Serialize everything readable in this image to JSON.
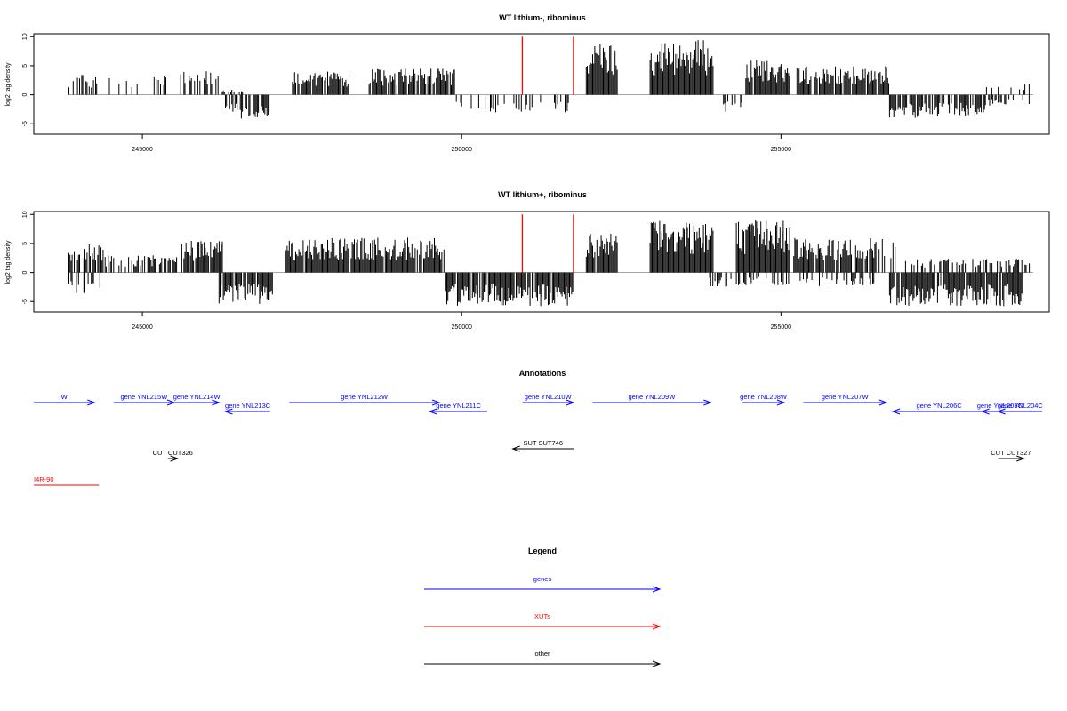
{
  "colors": {
    "gene": "#0000ff",
    "xut": "#ff0000",
    "other": "#000000",
    "marker": "#ff0000",
    "bars": "#000000"
  },
  "chart_data": [
    {
      "type": "bar",
      "title": "WT lithium-, ribominus",
      "ylabel": "log2 tag density",
      "xlim": [
        243300,
        259200
      ],
      "ylim": [
        -6.8,
        10.5
      ],
      "xticks": [
        245000,
        250000,
        255000
      ],
      "yticks": [
        10,
        5,
        0,
        -5
      ],
      "markers": [
        250950,
        251750
      ],
      "segments": [
        {
          "start": 243850,
          "end": 244300,
          "amp": 3.5,
          "density": 0.45,
          "sign": 1
        },
        {
          "start": 244400,
          "end": 245050,
          "amp": 3.0,
          "density": 0.25,
          "sign": 1
        },
        {
          "start": 245150,
          "end": 245400,
          "amp": 3.5,
          "density": 0.5,
          "sign": 1
        },
        {
          "start": 245600,
          "end": 246200,
          "amp": 4.2,
          "density": 0.55,
          "sign": 1
        },
        {
          "start": 246250,
          "end": 246600,
          "amp": 1.0,
          "density": 0.2,
          "sign": 1
        },
        {
          "start": 246300,
          "end": 246500,
          "amp": -3.2,
          "density": 0.55,
          "sign": -1
        },
        {
          "start": 246500,
          "end": 247000,
          "amp": -4.2,
          "density": 0.7,
          "sign": -1
        },
        {
          "start": 247350,
          "end": 248250,
          "amp": 4.0,
          "density": 0.85,
          "sign": 1
        },
        {
          "start": 248550,
          "end": 249900,
          "amp": 4.5,
          "density": 0.8,
          "sign": 1
        },
        {
          "start": 249900,
          "end": 250450,
          "amp": -3.0,
          "density": 0.35,
          "sign": -1
        },
        {
          "start": 250450,
          "end": 251700,
          "amp": -3.2,
          "density": 0.4,
          "sign": -1
        },
        {
          "start": 251950,
          "end": 252450,
          "amp": 9.0,
          "density": 1.0,
          "sign": 1
        },
        {
          "start": 252950,
          "end": 253950,
          "amp": 9.5,
          "density": 1.0,
          "sign": 1
        },
        {
          "start": 254100,
          "end": 254400,
          "amp": -3.2,
          "density": 0.4,
          "sign": -1
        },
        {
          "start": 254450,
          "end": 255150,
          "amp": 6.0,
          "density": 0.95,
          "sign": 1
        },
        {
          "start": 255250,
          "end": 256700,
          "amp": 5.0,
          "density": 0.85,
          "sign": 1
        },
        {
          "start": 256700,
          "end": 258200,
          "amp": -4.0,
          "density": 0.75,
          "sign": -1
        },
        {
          "start": 258200,
          "end": 258900,
          "amp": 1.8,
          "density": 0.25,
          "sign": 1
        },
        {
          "start": 258200,
          "end": 258900,
          "amp": -2.0,
          "density": 0.25,
          "sign": -1
        }
      ],
      "baseline": [
        243850,
        258950
      ]
    },
    {
      "type": "bar",
      "title": "WT lithium+, ribominus",
      "ylabel": "log2 tag density",
      "xlim": [
        243300,
        259200
      ],
      "ylim": [
        -6.8,
        10.5
      ],
      "xticks": [
        245000,
        250000,
        255000
      ],
      "yticks": [
        10,
        5,
        0,
        -5
      ],
      "markers": [
        250950,
        251750
      ],
      "segments": [
        {
          "start": 243850,
          "end": 244400,
          "amp": 5.0,
          "density": 0.8,
          "sign": 1
        },
        {
          "start": 243850,
          "end": 244350,
          "amp": -3.6,
          "density": 0.4,
          "sign": -1
        },
        {
          "start": 244400,
          "end": 245550,
          "amp": 3.0,
          "density": 0.5,
          "sign": 1
        },
        {
          "start": 245600,
          "end": 246300,
          "amp": 5.5,
          "density": 0.8,
          "sign": 1
        },
        {
          "start": 246200,
          "end": 247050,
          "amp": -5.5,
          "density": 0.85,
          "sign": -1
        },
        {
          "start": 247250,
          "end": 249750,
          "amp": 6.0,
          "density": 0.95,
          "sign": 1
        },
        {
          "start": 249750,
          "end": 251750,
          "amp": -5.8,
          "density": 0.95,
          "sign": -1
        },
        {
          "start": 251950,
          "end": 252450,
          "amp": 7.0,
          "density": 0.95,
          "sign": 1
        },
        {
          "start": 252950,
          "end": 253950,
          "amp": 9.0,
          "density": 1.0,
          "sign": 1
        },
        {
          "start": 253850,
          "end": 254250,
          "amp": -2.5,
          "density": 0.4,
          "sign": -1
        },
        {
          "start": 254300,
          "end": 255150,
          "amp": 9.0,
          "density": 1.0,
          "sign": 1
        },
        {
          "start": 254300,
          "end": 255150,
          "amp": -2.2,
          "density": 0.4,
          "sign": -1
        },
        {
          "start": 255200,
          "end": 256800,
          "amp": 6.0,
          "density": 0.9,
          "sign": 1
        },
        {
          "start": 255300,
          "end": 256500,
          "amp": -2.5,
          "density": 0.35,
          "sign": -1
        },
        {
          "start": 256700,
          "end": 258800,
          "amp": -5.8,
          "density": 0.9,
          "sign": -1
        },
        {
          "start": 256900,
          "end": 258900,
          "amp": 2.5,
          "density": 0.45,
          "sign": 1
        }
      ],
      "baseline": [
        243850,
        258950
      ]
    }
  ],
  "annotations": {
    "title": "Annotations",
    "xlim": [
      243300,
      259200
    ],
    "genes": [
      {
        "label": "W",
        "start": 243300,
        "end": 244250,
        "strand": "+",
        "row": 0
      },
      {
        "label": "gene YNL215W",
        "start": 244550,
        "end": 245500,
        "strand": "+",
        "row": 0
      },
      {
        "label": "gene YNL214W",
        "start": 245500,
        "end": 246200,
        "strand": "+",
        "row": 0
      },
      {
        "label": "gene YNL213C",
        "start": 246300,
        "end": 247000,
        "strand": "-",
        "row": 1
      },
      {
        "label": "gene YNL212W",
        "start": 247300,
        "end": 249650,
        "strand": "+",
        "row": 0
      },
      {
        "label": "gene YNL211C",
        "start": 249500,
        "end": 250400,
        "strand": "-",
        "row": 1
      },
      {
        "label": "gene YNL210W",
        "start": 250950,
        "end": 251750,
        "strand": "+",
        "row": 0
      },
      {
        "label": "gene YNL209W",
        "start": 252050,
        "end": 253900,
        "strand": "+",
        "row": 0
      },
      {
        "label": "gene YNL208W",
        "start": 254400,
        "end": 255050,
        "strand": "+",
        "row": 0
      },
      {
        "label": "gene YNL207W",
        "start": 255350,
        "end": 256650,
        "strand": "+",
        "row": 0
      },
      {
        "label": "gene YNL206C",
        "start": 256750,
        "end": 258200,
        "strand": "-",
        "row": 1
      },
      {
        "label": "gene YNL205C",
        "start": 258150,
        "end": 258700,
        "strand": "-",
        "row": 1
      },
      {
        "label": "gene YNL204C",
        "start": 258400,
        "end": 259250,
        "strand": "-",
        "row": 1
      }
    ],
    "other": [
      {
        "label": "SUT SUT746",
        "start": 250800,
        "end": 251750,
        "strand": "-",
        "row": 2
      },
      {
        "label": "CUT CUT326",
        "start": 245400,
        "end": 245550,
        "strand": "+",
        "row": 3
      },
      {
        "label": "CUT CUT327",
        "start": 258400,
        "end": 258800,
        "strand": "+",
        "row": 3
      }
    ],
    "xuts": [
      {
        "label": "I4R-90",
        "start": 243300,
        "end": 244320,
        "strand": "none",
        "row": 4
      }
    ]
  },
  "legend": {
    "title": "Legend",
    "items": [
      {
        "label": "genes",
        "color_key": "gene"
      },
      {
        "label": "XUTs",
        "color_key": "xut"
      },
      {
        "label": "other",
        "color_key": "other"
      }
    ]
  }
}
